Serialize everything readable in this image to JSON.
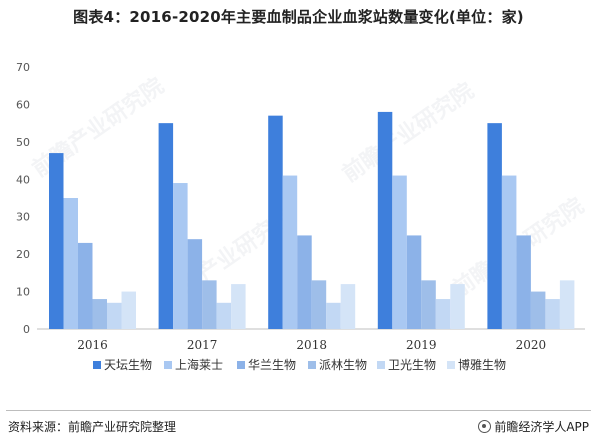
{
  "title": "图表4：2016-2020年主要血制品企业血浆站数量变化(单位：家)",
  "watermark_text": "前瞻产业研究院",
  "footer": {
    "source": "资料来源：前瞻产业研究院整理",
    "brand": "前瞻经济学人APP",
    "brand_icon": "qianzhan-logo-icon"
  },
  "chart_data": {
    "type": "bar",
    "title": "图表4：2016-2020年主要血制品企业血浆站数量变化(单位：家)",
    "xlabel": "",
    "ylabel": "",
    "categories": [
      "2016",
      "2017",
      "2018",
      "2019",
      "2020"
    ],
    "ylim": [
      0,
      70
    ],
    "yticks": [
      0,
      10,
      20,
      30,
      40,
      50,
      60,
      70
    ],
    "grid": false,
    "legend_position": "bottom",
    "series": [
      {
        "name": "天坛生物",
        "color": "#3e7fdc",
        "values": [
          47,
          55,
          57,
          58,
          55
        ]
      },
      {
        "name": "上海莱士",
        "color": "#a9c8f2",
        "values": [
          35,
          39,
          41,
          41,
          41
        ]
      },
      {
        "name": "华兰生物",
        "color": "#8cb2e8",
        "values": [
          23,
          24,
          25,
          25,
          25
        ]
      },
      {
        "name": "派林生物",
        "color": "#9ebee9",
        "values": [
          8,
          13,
          13,
          13,
          10
        ]
      },
      {
        "name": "卫光生物",
        "color": "#c2d8f4",
        "values": [
          7,
          7,
          7,
          8,
          8
        ]
      },
      {
        "name": "博雅生物",
        "color": "#d4e4f7",
        "values": [
          10,
          12,
          12,
          12,
          13
        ]
      }
    ]
  }
}
